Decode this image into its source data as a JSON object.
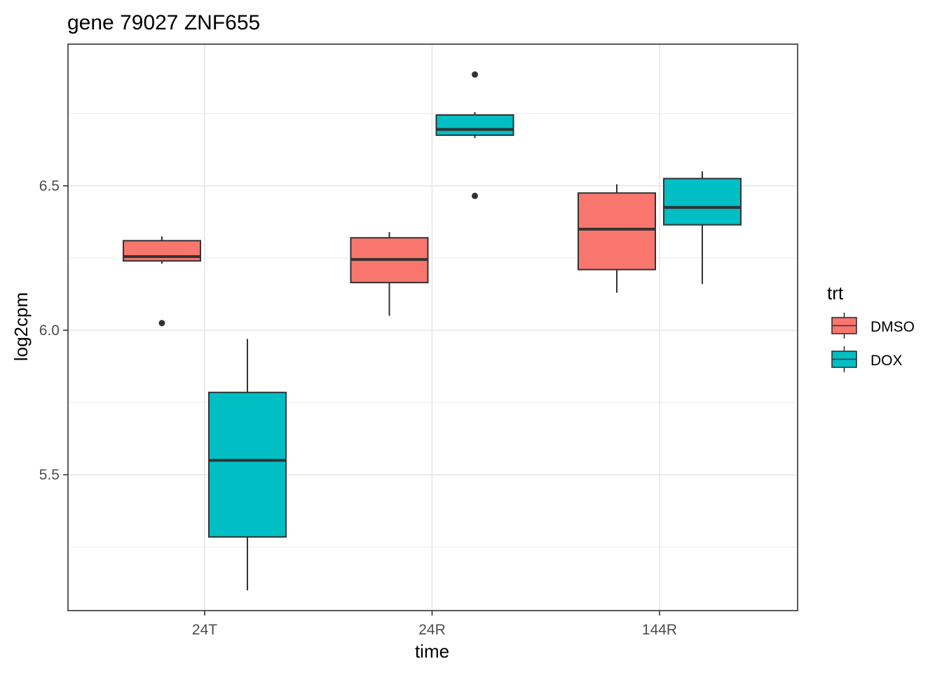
{
  "chart_data": {
    "type": "boxplot",
    "title": "gene 79027 ZNF655",
    "xlabel": "time",
    "ylabel": "log2cpm",
    "categories": [
      "24T",
      "24R",
      "144R"
    ],
    "ylim": [
      5.03,
      6.99
    ],
    "yticks": [
      5.5,
      6.0,
      6.5
    ],
    "ytick_labels": [
      "5.5",
      "6.0",
      "6.5"
    ],
    "grid": true,
    "legend": {
      "title": "trt",
      "position": "right",
      "entries": [
        "DMSO",
        "DOX"
      ]
    },
    "series": [
      {
        "name": "DMSO",
        "color": "#F8766D",
        "boxes": [
          {
            "category": "24T",
            "min": 6.23,
            "q1": 6.24,
            "median": 6.255,
            "q3": 6.31,
            "max": 6.325,
            "outliers": [
              6.025
            ]
          },
          {
            "category": "24R",
            "min": 6.05,
            "q1": 6.165,
            "median": 6.245,
            "q3": 6.32,
            "max": 6.34,
            "outliers": []
          },
          {
            "category": "144R",
            "min": 6.13,
            "q1": 6.21,
            "median": 6.35,
            "q3": 6.475,
            "max": 6.505,
            "outliers": []
          }
        ]
      },
      {
        "name": "DOX",
        "color": "#00BFC4",
        "boxes": [
          {
            "category": "24T",
            "min": 5.1,
            "q1": 5.285,
            "median": 5.55,
            "q3": 5.785,
            "max": 5.97,
            "outliers": []
          },
          {
            "category": "24R",
            "min": 6.665,
            "q1": 6.675,
            "median": 6.695,
            "q3": 6.745,
            "max": 6.755,
            "outliers": [
              6.885,
              6.465
            ]
          },
          {
            "category": "144R",
            "min": 6.16,
            "q1": 6.365,
            "median": 6.425,
            "q3": 6.525,
            "max": 6.55,
            "outliers": []
          }
        ]
      }
    ]
  }
}
